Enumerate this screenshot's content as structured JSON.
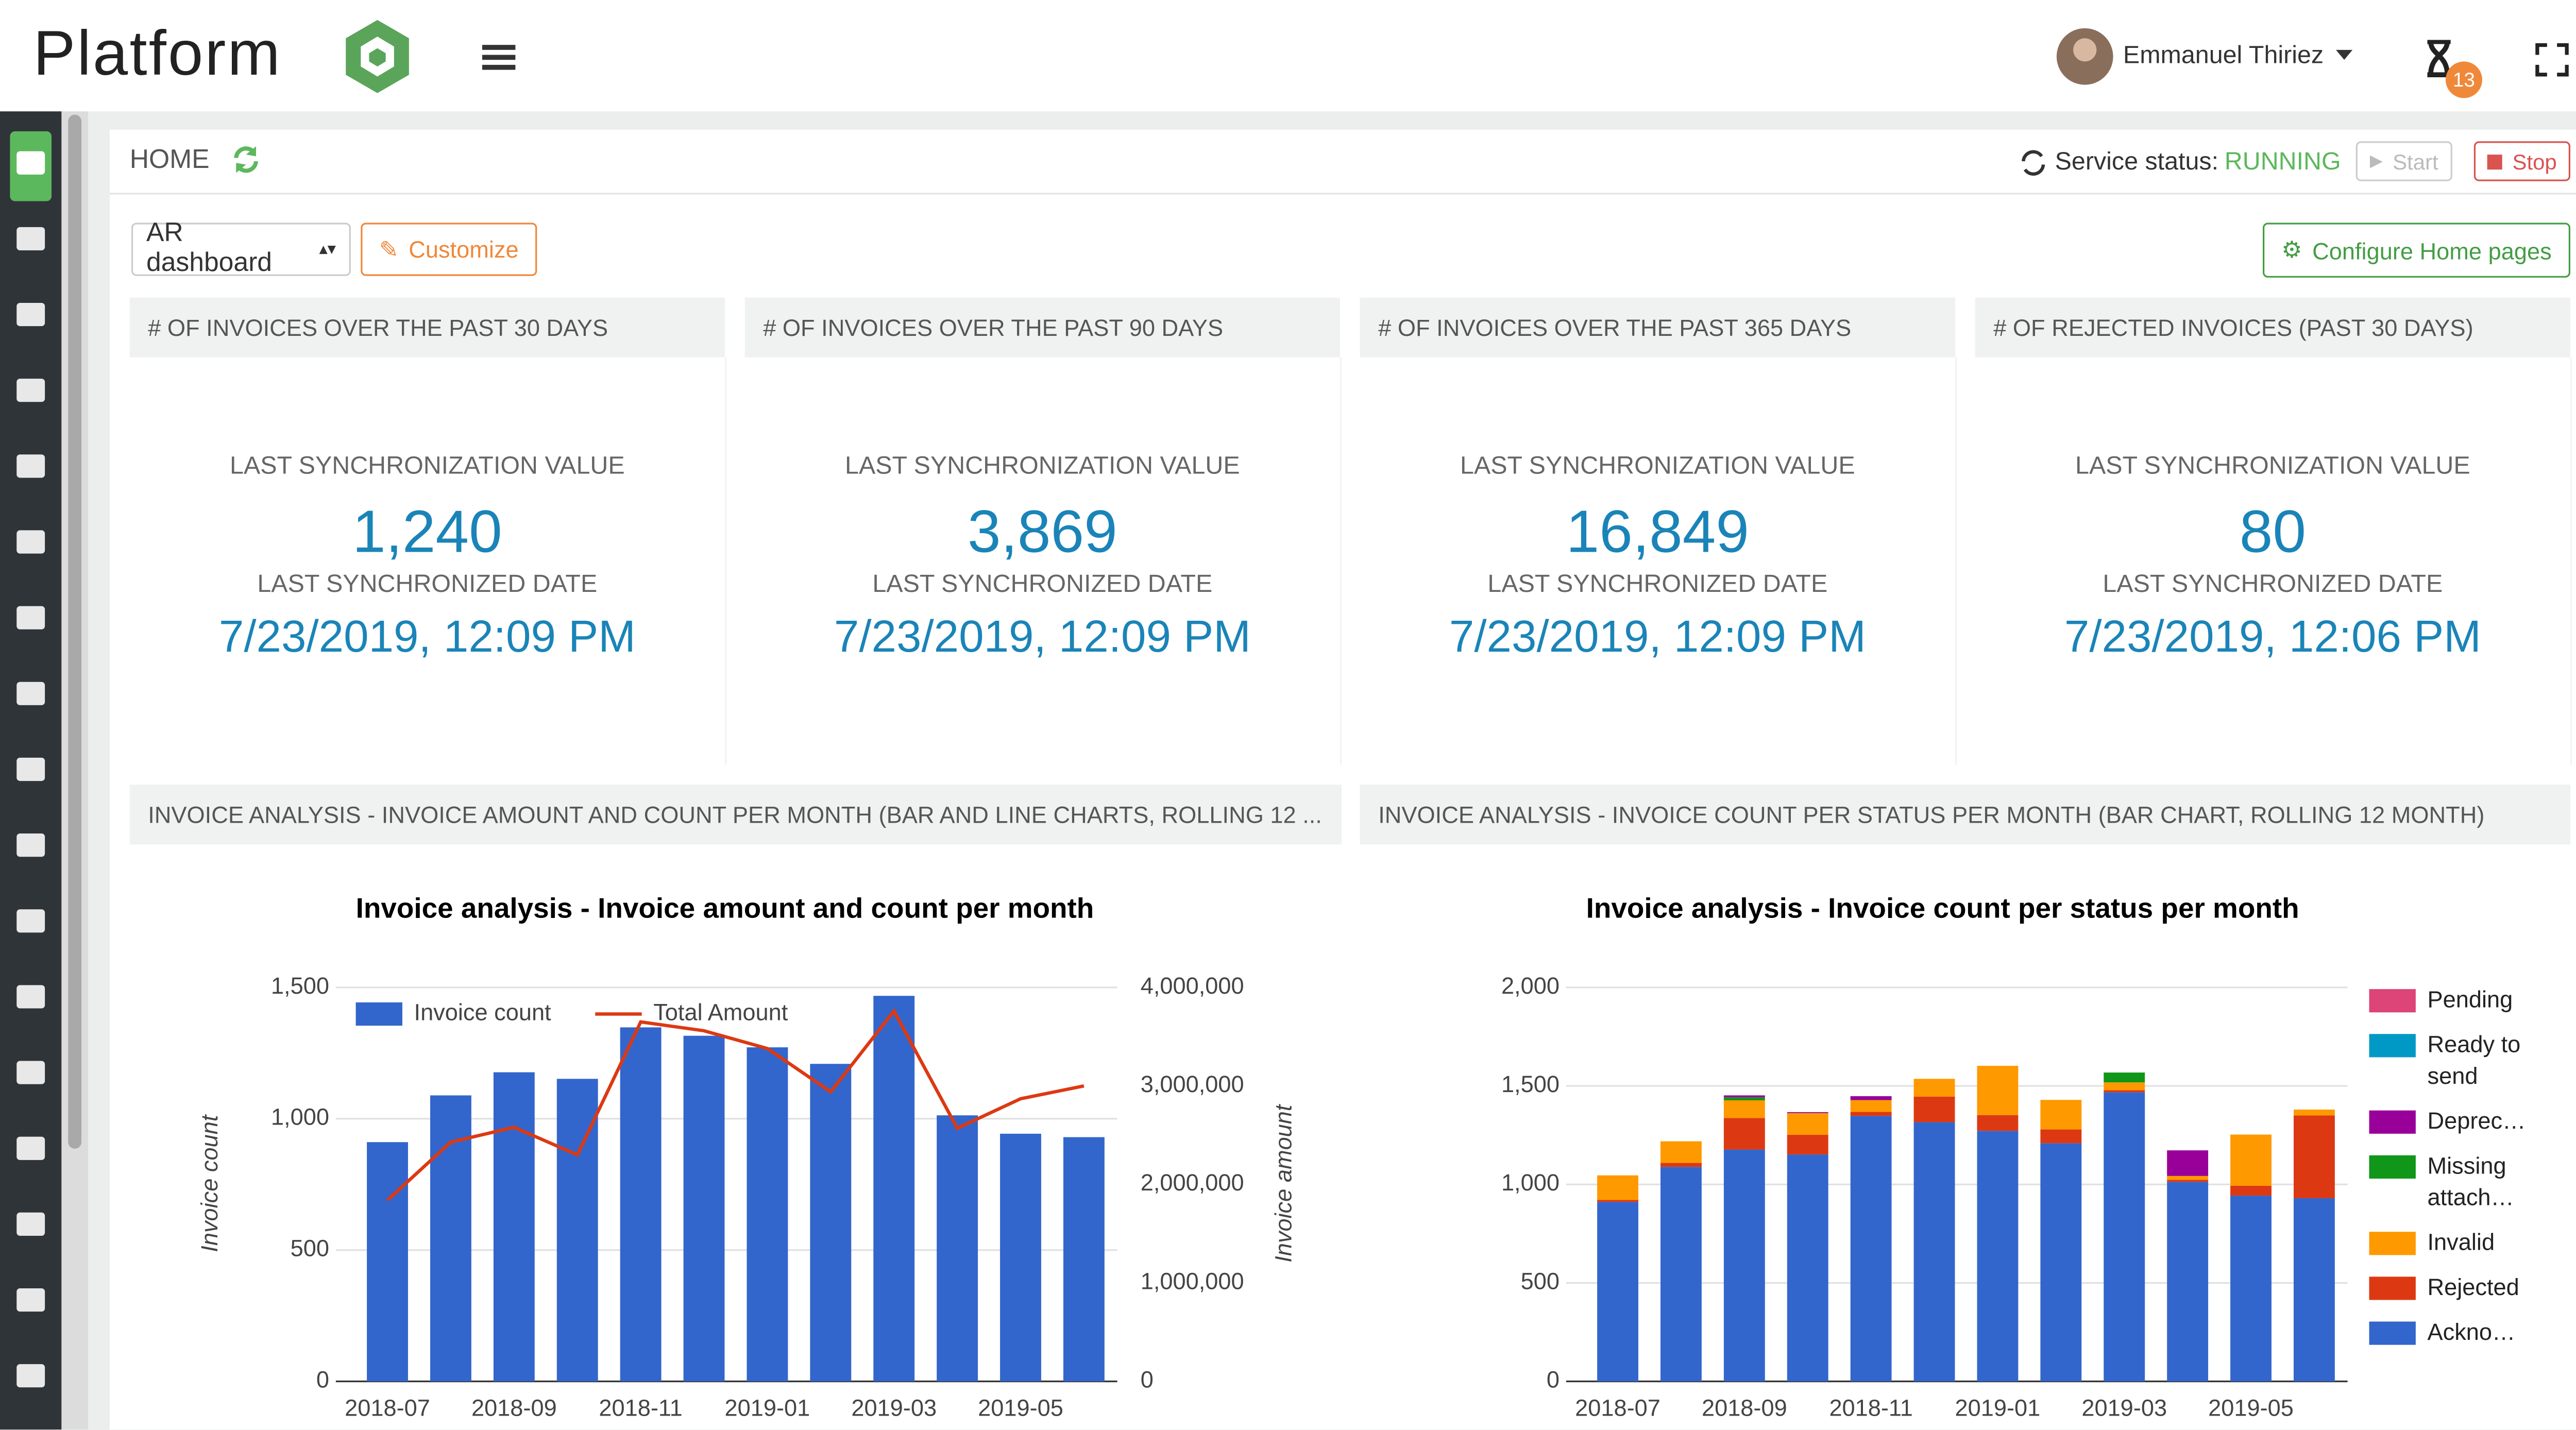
{
  "header": {
    "brand": "Platform",
    "user": "Emmanuel Thiriez",
    "badge": "13"
  },
  "toolbar": {
    "breadcrumb": "HOME",
    "status_label": "Service status:",
    "status": "RUNNING",
    "start": "Start",
    "stop": "Stop"
  },
  "controls": {
    "dashboard": "AR dashboard",
    "customize": "Customize",
    "configure": "Configure Home pages"
  },
  "cards": [
    {
      "title": "# OF INVOICES OVER THE PAST 30 DAYS",
      "value_label": "LAST SYNCHRONIZATION VALUE",
      "value": "1,240",
      "date_label": "LAST SYNCHRONIZED DATE",
      "date": "7/23/2019, 12:09 PM"
    },
    {
      "title": "# OF INVOICES OVER THE PAST 90 DAYS",
      "value_label": "LAST SYNCHRONIZATION VALUE",
      "value": "3,869",
      "date_label": "LAST SYNCHRONIZED DATE",
      "date": "7/23/2019, 12:09 PM"
    },
    {
      "title": "# OF INVOICES OVER THE PAST 365 DAYS",
      "value_label": "LAST SYNCHRONIZATION VALUE",
      "value": "16,849",
      "date_label": "LAST SYNCHRONIZED DATE",
      "date": "7/23/2019, 12:09 PM"
    },
    {
      "title": "# OF REJECTED INVOICES (PAST 30 DAYS)",
      "value_label": "LAST SYNCHRONIZATION VALUE",
      "value": "80",
      "date_label": "LAST SYNCHRONIZED DATE",
      "date": "7/23/2019, 12:06 PM"
    }
  ],
  "panels": [
    "INVOICE ANALYSIS - INVOICE AMOUNT AND COUNT PER MONTH (BAR AND LINE CHARTS, ROLLING 12 ...",
    "INVOICE ANALYSIS - INVOICE COUNT PER STATUS PER MONTH (BAR CHART, ROLLING 12 MONTH)"
  ],
  "chart_data": [
    {
      "type": "bar",
      "title": "Invoice analysis - Invoice amount and count per month",
      "categories": [
        "2018-07",
        null,
        "2018-09",
        null,
        "2018-11",
        null,
        "2019-01",
        null,
        "2019-03",
        null,
        "2019-05",
        null
      ],
      "series": [
        {
          "name": "Invoice count",
          "type": "bar",
          "color": "#3366cc",
          "values": [
            911,
            1089,
            1177,
            1152,
            1348,
            1316,
            1272,
            1209,
            1468,
            1013,
            943,
            930
          ]
        },
        {
          "name": "Total Amount",
          "type": "line",
          "axis": "y2",
          "color": "#dc3912",
          "values": [
            1840000,
            2430000,
            2580000,
            2300000,
            3650000,
            3560000,
            3380000,
            2940000,
            3760000,
            2570000,
            2870000,
            3000000
          ]
        }
      ],
      "ylabel": "Invoice count",
      "y2label": "Invoice amount",
      "ylim": [
        0,
        1500
      ],
      "yticks": [
        0,
        500,
        {
          "value": 1000,
          "label": "1,000"
        },
        {
          "value": 1500,
          "label": "1,500"
        }
      ],
      "y2lim": [
        0,
        4000000
      ],
      "y2ticks": [
        0,
        {
          "value": 1000000,
          "label": "1,000,000"
        },
        {
          "value": 2000000,
          "label": "2,000,000"
        },
        {
          "value": 3000000,
          "label": "3,000,000"
        },
        {
          "value": 4000000,
          "label": "4,000,000"
        }
      ],
      "grid": true,
      "legend": "top"
    },
    {
      "type": "stacked_bar",
      "title": "Invoice analysis - Invoice count per status per month",
      "categories": [
        "2018-07",
        null,
        "2018-09",
        null,
        "2018-11",
        null,
        "2019-01",
        null,
        "2019-03",
        null,
        "2019-05",
        null
      ],
      "series": [
        {
          "name": "Pending",
          "color": "#dd4477",
          "values": [
            0,
            0,
            0,
            0,
            0,
            0,
            0,
            0,
            0,
            0,
            0,
            0
          ]
        },
        {
          "name": "Ready to send",
          "color": "#0099c6",
          "values": [
            0,
            0,
            0,
            0,
            0,
            0,
            0,
            0,
            0,
            0,
            0,
            0
          ]
        },
        {
          "name": "Deprec…",
          "color": "#990099",
          "values": [
            0,
            0,
            10,
            5,
            20,
            0,
            0,
            0,
            0,
            130,
            0,
            0
          ]
        },
        {
          "name": "Missing attach…",
          "color": "#109618",
          "values": [
            0,
            0,
            15,
            0,
            0,
            0,
            0,
            0,
            50,
            0,
            0,
            0
          ]
        },
        {
          "name": "Invalid",
          "color": "#ff9900",
          "values": [
            125,
            110,
            90,
            110,
            60,
            90,
            250,
            150,
            40,
            20,
            260,
            30
          ]
        },
        {
          "name": "Rejected",
          "color": "#dc3912",
          "values": [
            10,
            20,
            160,
            100,
            20,
            130,
            80,
            70,
            10,
            10,
            50,
            420
          ]
        },
        {
          "name": "Ackno…",
          "color": "#3366cc",
          "values": [
            911,
            1089,
            1177,
            1152,
            1348,
            1316,
            1272,
            1209,
            1468,
            1013,
            943,
            930
          ]
        }
      ],
      "ylim": [
        0,
        2000
      ],
      "yticks": [
        0,
        500,
        {
          "value": 1000,
          "label": "1,000"
        },
        {
          "value": 1500,
          "label": "1,500"
        },
        {
          "value": 2000,
          "label": "2,000"
        }
      ],
      "grid": true,
      "legend": "right"
    }
  ]
}
